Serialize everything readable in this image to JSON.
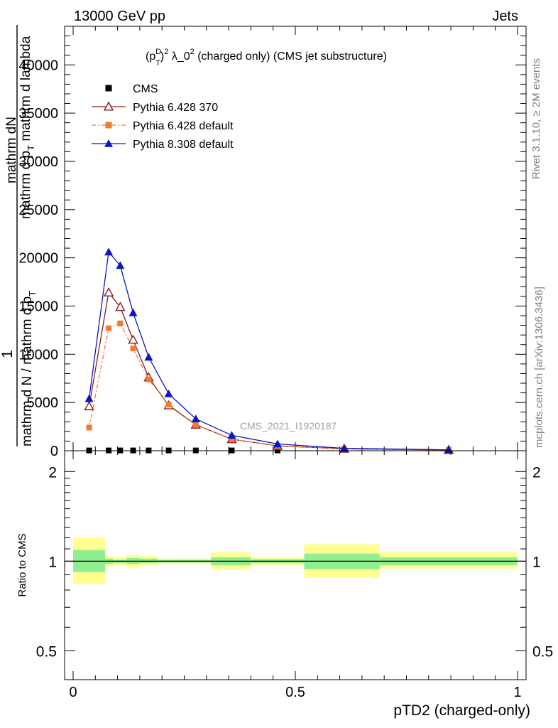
{
  "header": {
    "left": "13000 GeV pp",
    "right": "Jets"
  },
  "side_labels": {
    "rivet": "Rivet 3.1.10, ≥ 2M events",
    "mcplots": "mcplots.cern.ch [arXiv:1306.3436]"
  },
  "chart_data": [
    {
      "type": "line",
      "title_parts": {
        "base": "(p",
        "sup1": "D",
        "sub1": "T",
        "close": ")",
        "sup2": "2",
        "rest": " λ_0",
        "sup3": "2",
        "tail": " (charged only) (CMS jet substructure)"
      },
      "watermark": "CMS_2021_I1920187",
      "ylabel": {
        "one": "1",
        "line1": "mathrm dN",
        "line2": "mathrm d p",
        "line2_sub": "T",
        "line2_rest": " mathrm d lambda",
        "line3": "mathrm d N / mathrm d p",
        "line3_sub": "T"
      },
      "xlim": [
        0,
        1
      ],
      "ylim": [
        0,
        44000
      ],
      "yticks": [
        {
          "v": 0,
          "label": "0"
        },
        {
          "v": 5000,
          "label": "5000"
        },
        {
          "v": 10000,
          "label": "10000"
        },
        {
          "v": 15000,
          "label": "15000"
        },
        {
          "v": 20000,
          "label": "20000"
        },
        {
          "v": 25000,
          "label": "25000"
        },
        {
          "v": 30000,
          "label": "30000"
        },
        {
          "v": 35000,
          "label": "35000"
        },
        {
          "v": 40000,
          "label": "40000"
        }
      ],
      "series": [
        {
          "name": "CMS",
          "style": "data",
          "color": "#000000",
          "x": [
            0.036,
            0.08,
            0.106,
            0.135,
            0.17,
            0.215,
            0.276,
            0.357,
            0.46
          ],
          "y": [
            30,
            30,
            30,
            30,
            30,
            30,
            30,
            30,
            30
          ]
        },
        {
          "name": "Pythia 6.428 370",
          "style": "open-triangle",
          "color": "#8b1a1a",
          "x": [
            0.036,
            0.08,
            0.106,
            0.135,
            0.17,
            0.215,
            0.276,
            0.357,
            0.46,
            0.61,
            0.845
          ],
          "y": [
            4600,
            16400,
            14900,
            11500,
            7600,
            4700,
            2700,
            1200,
            500,
            200,
            80
          ]
        },
        {
          "name": "Pythia 6.428 default",
          "style": "dashdot-square",
          "color": "#f07b2f",
          "x": [
            0.036,
            0.08,
            0.106,
            0.135,
            0.17,
            0.215,
            0.276,
            0.357,
            0.46,
            0.61,
            0.845
          ],
          "y": [
            2400,
            12700,
            13200,
            10600,
            7400,
            4800,
            2700,
            1200,
            500,
            200,
            80
          ]
        },
        {
          "name": "Pythia 8.308 default",
          "style": "filled-triangle",
          "color": "#0a14c8",
          "x": [
            0.036,
            0.08,
            0.106,
            0.135,
            0.17,
            0.215,
            0.276,
            0.357,
            0.46,
            0.61,
            0.845
          ],
          "y": [
            5400,
            20600,
            19200,
            14300,
            9700,
            5900,
            3300,
            1600,
            700,
            250,
            90
          ]
        }
      ]
    },
    {
      "type": "area",
      "ylabel": "Ratio to CMS",
      "xlabel": "pTD2 (charged-only)",
      "scale": "log",
      "ylim": [
        0.4,
        2.35
      ],
      "yticks": [
        {
          "v": 0.5,
          "label": "0.5"
        },
        {
          "v": 1,
          "label": "1"
        },
        {
          "v": 2,
          "label": "2"
        }
      ],
      "xticks": [
        {
          "v": 0,
          "label": "0"
        },
        {
          "v": 0.5,
          "label": "0.5"
        },
        {
          "v": 1,
          "label": "1"
        }
      ],
      "colors": {
        "inner": "#90ee90",
        "outer": "#ffff90",
        "line": "#000000"
      },
      "bands": [
        {
          "x0": 0.0,
          "x1": 0.072,
          "inner": [
            0.92,
            1.09
          ],
          "outer": [
            0.84,
            1.2
          ]
        },
        {
          "x0": 0.072,
          "x1": 0.09,
          "inner": [
            0.98,
            1.02
          ],
          "outer": [
            0.96,
            1.04
          ]
        },
        {
          "x0": 0.09,
          "x1": 0.12,
          "inner": [
            0.985,
            1.01
          ],
          "outer": [
            0.97,
            1.025
          ]
        },
        {
          "x0": 0.12,
          "x1": 0.152,
          "inner": [
            0.98,
            1.025
          ],
          "outer": [
            0.95,
            1.05
          ]
        },
        {
          "x0": 0.152,
          "x1": 0.19,
          "inner": [
            0.985,
            1.02
          ],
          "outer": [
            0.965,
            1.04
          ]
        },
        {
          "x0": 0.19,
          "x1": 0.24,
          "inner": [
            0.99,
            1.01
          ],
          "outer": [
            0.98,
            1.02
          ]
        },
        {
          "x0": 0.24,
          "x1": 0.31,
          "inner": [
            0.99,
            1.01
          ],
          "outer": [
            0.98,
            1.02
          ]
        },
        {
          "x0": 0.31,
          "x1": 0.4,
          "inner": [
            0.97,
            1.03
          ],
          "outer": [
            0.94,
            1.07
          ]
        },
        {
          "x0": 0.4,
          "x1": 0.52,
          "inner": [
            0.985,
            1.015
          ],
          "outer": [
            0.97,
            1.03
          ]
        },
        {
          "x0": 0.52,
          "x1": 0.69,
          "inner": [
            0.94,
            1.06
          ],
          "outer": [
            0.88,
            1.14
          ]
        },
        {
          "x0": 0.69,
          "x1": 1.0,
          "inner": [
            0.97,
            1.03
          ],
          "outer": [
            0.945,
            1.07
          ]
        }
      ]
    }
  ]
}
